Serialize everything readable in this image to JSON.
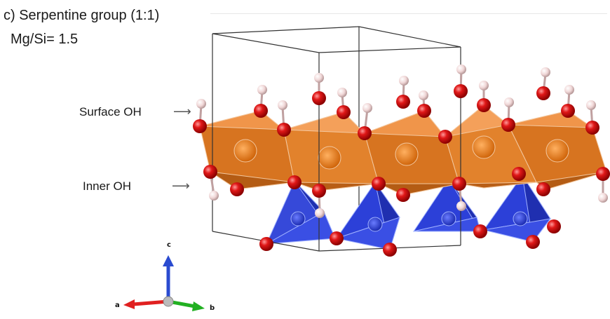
{
  "figure": {
    "title": "c) Serpentine group (1:1)",
    "ratio_label": "Mg/Si= 1.5"
  },
  "labels": {
    "surface_oh": "Surface OH",
    "inner_oh": "Inner OH"
  },
  "axes": {
    "a": "a",
    "b": "b",
    "c": "c"
  },
  "colors": {
    "octahedra": "#e87a1d",
    "tetrahedra": "#2b3fd6",
    "oxygen": "#e01818",
    "hydrogen": "#f2dada",
    "axis_a": "#e02020",
    "axis_b": "#22b022",
    "axis_c": "#2a4bd0",
    "cell": "#333333"
  }
}
